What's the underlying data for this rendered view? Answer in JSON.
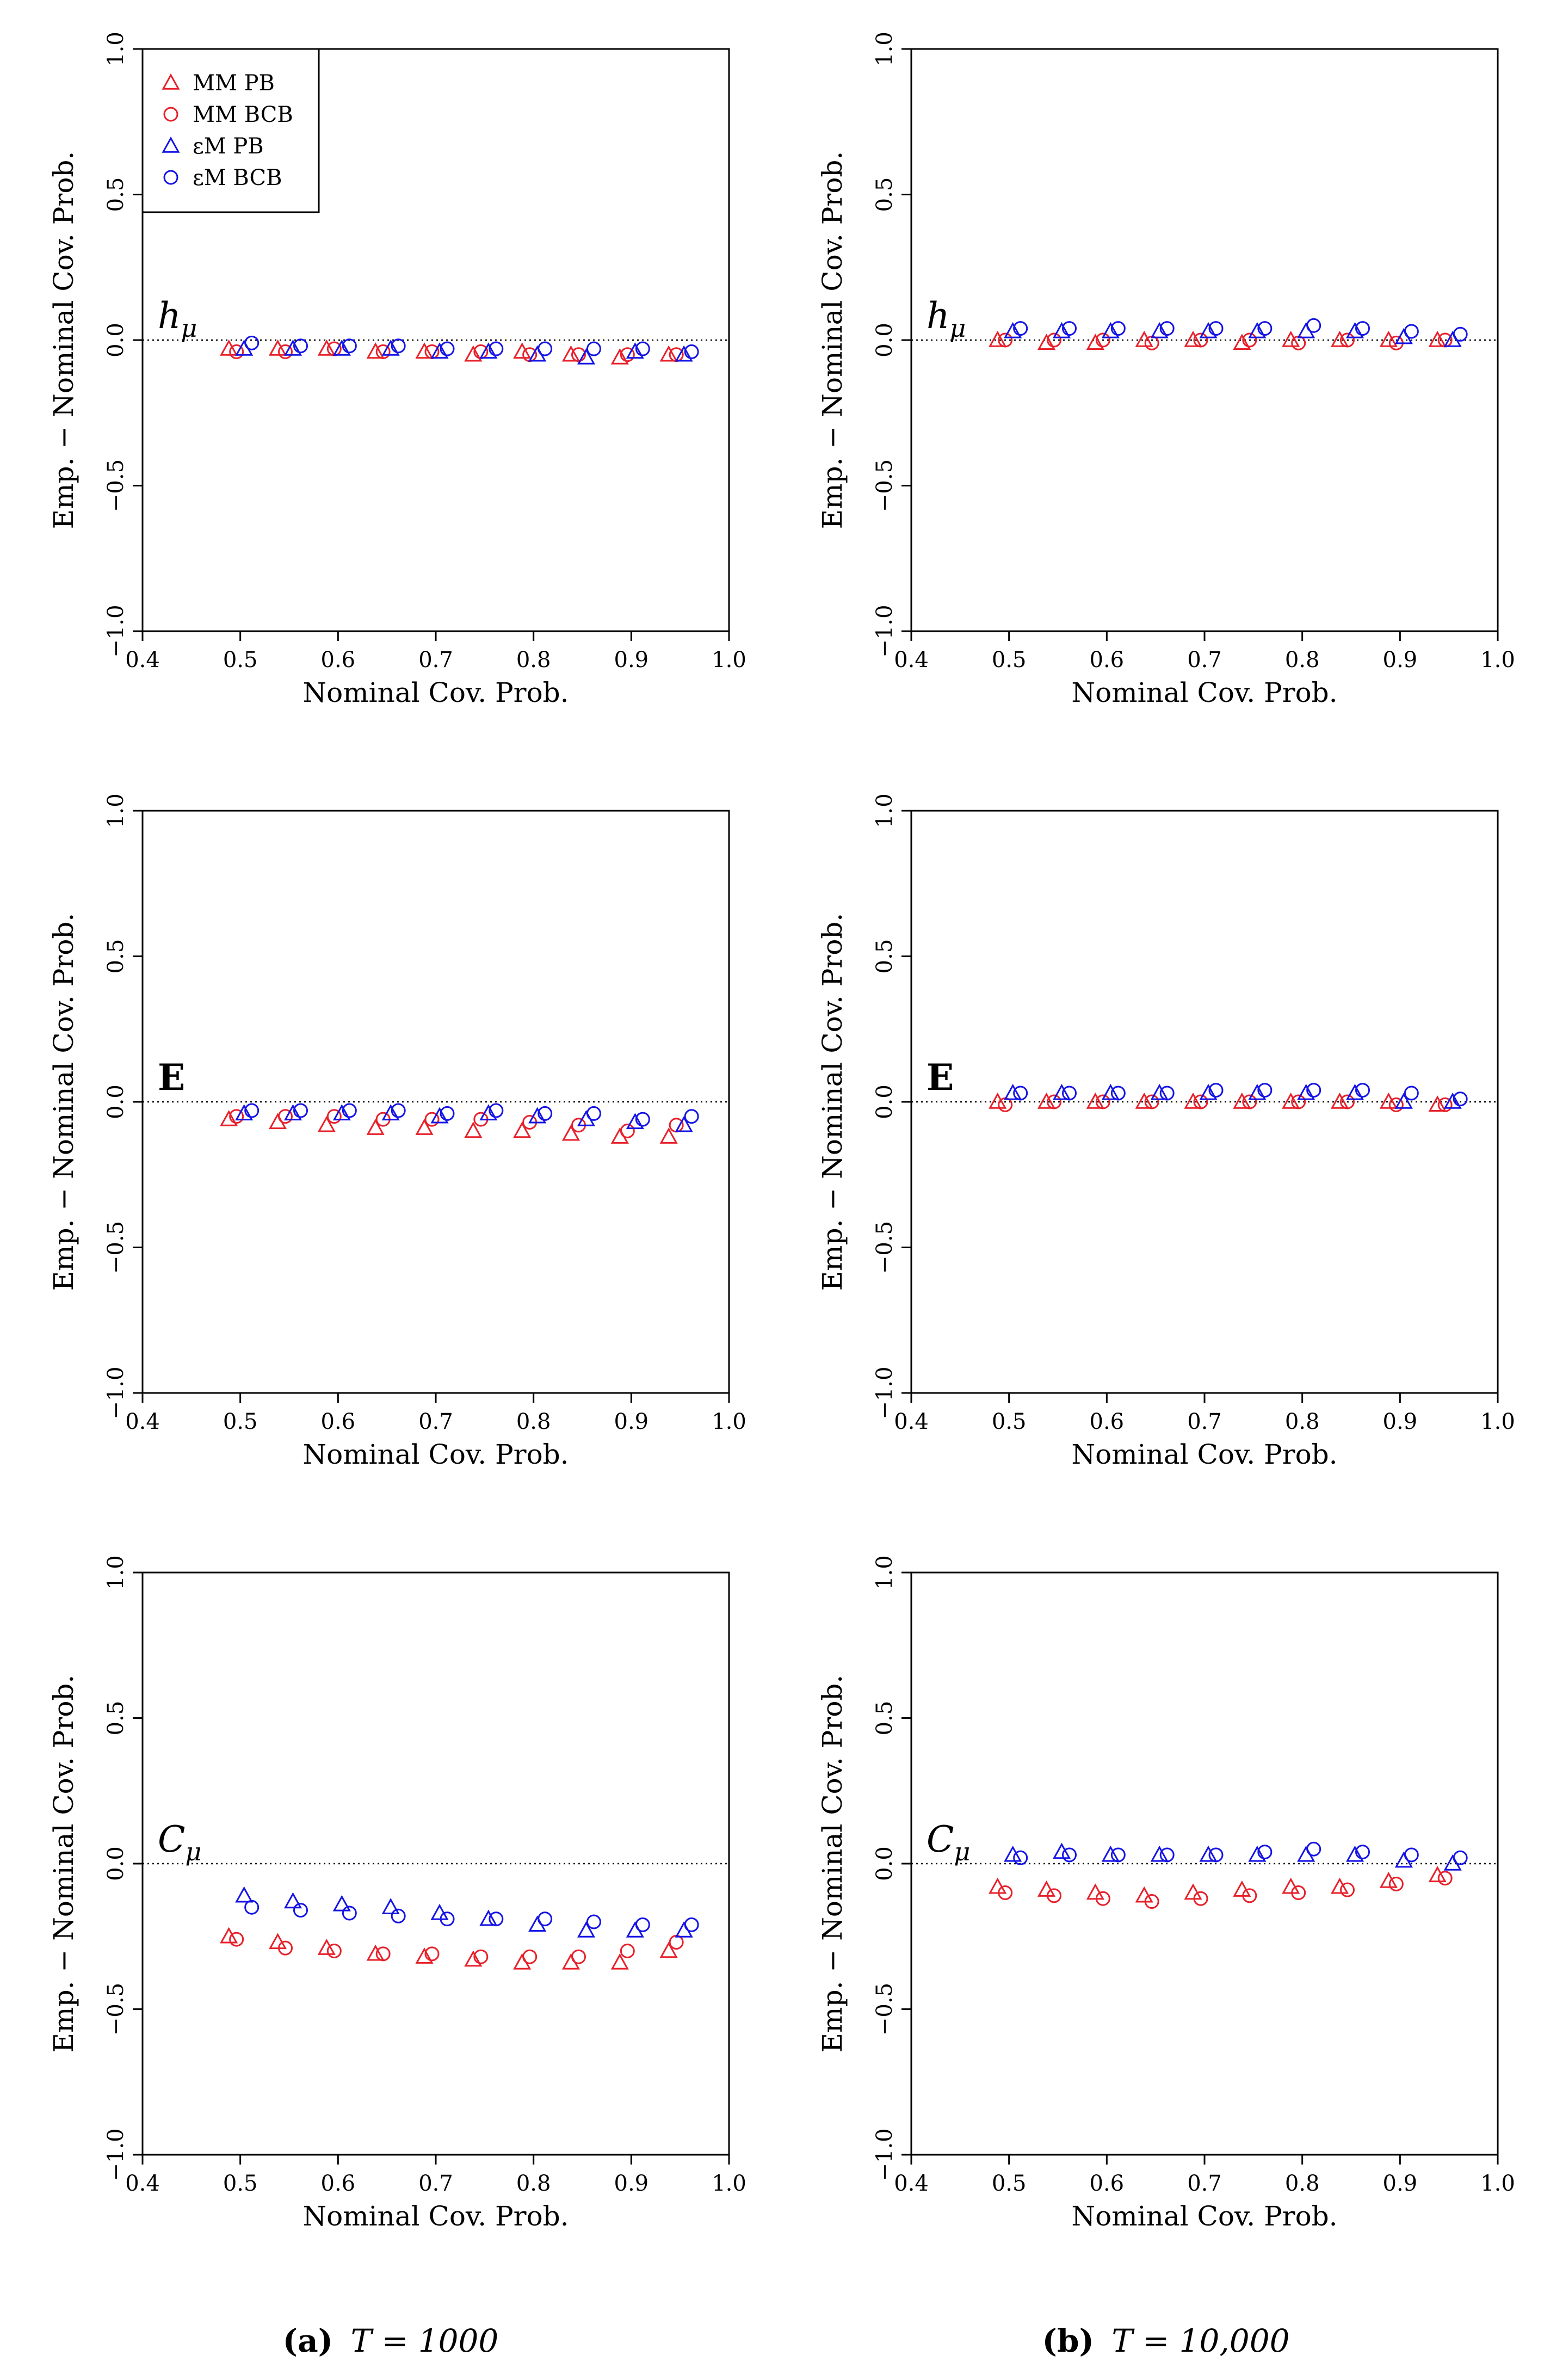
{
  "colors": {
    "mm": "#e8202a",
    "em": "#1414e6",
    "axis": "#000000"
  },
  "legend": [
    {
      "label": "MM PB",
      "marker": "triangle",
      "color": "#e8202a"
    },
    {
      "label": "MM BCB",
      "marker": "circle",
      "color": "#e8202a"
    },
    {
      "label": "εM PB",
      "marker": "triangle",
      "color": "#1414e6"
    },
    {
      "label": "εM BCB",
      "marker": "circle",
      "color": "#1414e6"
    }
  ],
  "captions": [
    {
      "letter": "(a)",
      "text": "T = 1000"
    },
    {
      "letter": "(b)",
      "text": "T = 10,000"
    }
  ],
  "chart_data": [
    {
      "type": "scatter",
      "panel": "a-top",
      "label": "hμ",
      "label_style": "italic",
      "xlabel": "Nominal Cov. Prob.",
      "ylabel": "Emp. − Nominal Cov. Prob.",
      "xlim": [
        0.4,
        1.0
      ],
      "ylim": [
        -1.0,
        1.0
      ],
      "xticks": [
        "0.4",
        "0.5",
        "0.6",
        "0.7",
        "0.8",
        "0.9",
        "1.0"
      ],
      "yticks": [
        "−1.0",
        "−0.5",
        "0.0",
        "0.5",
        "1.0"
      ],
      "reference_line": 0.0,
      "x": [
        0.5,
        0.55,
        0.6,
        0.65,
        0.7,
        0.75,
        0.8,
        0.85,
        0.9,
        0.95
      ],
      "series": [
        {
          "name": "MM PB",
          "values": [
            -0.03,
            -0.03,
            -0.03,
            -0.04,
            -0.04,
            -0.05,
            -0.04,
            -0.05,
            -0.06,
            -0.05
          ]
        },
        {
          "name": "MM BCB",
          "values": [
            -0.04,
            -0.04,
            -0.03,
            -0.04,
            -0.04,
            -0.04,
            -0.05,
            -0.05,
            -0.05,
            -0.05
          ]
        },
        {
          "name": "εM PB",
          "values": [
            -0.03,
            -0.03,
            -0.03,
            -0.03,
            -0.04,
            -0.04,
            -0.05,
            -0.06,
            -0.04,
            -0.05
          ]
        },
        {
          "name": "εM BCB",
          "values": [
            -0.01,
            -0.02,
            -0.02,
            -0.02,
            -0.03,
            -0.03,
            -0.03,
            -0.03,
            -0.03,
            -0.04
          ]
        }
      ]
    },
    {
      "type": "scatter",
      "panel": "b-top",
      "label": "hμ",
      "label_style": "italic",
      "xlabel": "Nominal Cov. Prob.",
      "ylabel": "Emp. − Nominal Cov. Prob.",
      "xlim": [
        0.4,
        1.0
      ],
      "ylim": [
        -1.0,
        1.0
      ],
      "xticks": [
        "0.4",
        "0.5",
        "0.6",
        "0.7",
        "0.8",
        "0.9",
        "1.0"
      ],
      "yticks": [
        "−1.0",
        "−0.5",
        "0.0",
        "0.5",
        "1.0"
      ],
      "reference_line": 0.0,
      "x": [
        0.5,
        0.55,
        0.6,
        0.65,
        0.7,
        0.75,
        0.8,
        0.85,
        0.9,
        0.95
      ],
      "series": [
        {
          "name": "MM PB",
          "values": [
            0.0,
            -0.01,
            -0.01,
            0.0,
            0.0,
            -0.01,
            0.0,
            0.0,
            0.0,
            0.0
          ]
        },
        {
          "name": "MM BCB",
          "values": [
            0.0,
            0.0,
            0.0,
            -0.01,
            0.0,
            0.0,
            -0.01,
            0.0,
            -0.01,
            0.0
          ]
        },
        {
          "name": "εM PB",
          "values": [
            0.03,
            0.03,
            0.03,
            0.03,
            0.03,
            0.03,
            0.03,
            0.03,
            0.01,
            0.0
          ]
        },
        {
          "name": "εM BCB",
          "values": [
            0.04,
            0.04,
            0.04,
            0.04,
            0.04,
            0.04,
            0.05,
            0.04,
            0.03,
            0.02
          ]
        }
      ]
    },
    {
      "type": "scatter",
      "panel": "a-middle",
      "label": "E",
      "label_style": "bold",
      "xlabel": "Nominal Cov. Prob.",
      "ylabel": "Emp. − Nominal Cov. Prob.",
      "xlim": [
        0.4,
        1.0
      ],
      "ylim": [
        -1.0,
        1.0
      ],
      "xticks": [
        "0.4",
        "0.5",
        "0.6",
        "0.7",
        "0.8",
        "0.9",
        "1.0"
      ],
      "yticks": [
        "−1.0",
        "−0.5",
        "0.0",
        "0.5",
        "1.0"
      ],
      "reference_line": 0.0,
      "x": [
        0.5,
        0.55,
        0.6,
        0.65,
        0.7,
        0.75,
        0.8,
        0.85,
        0.9,
        0.95
      ],
      "series": [
        {
          "name": "MM PB",
          "values": [
            -0.06,
            -0.07,
            -0.08,
            -0.09,
            -0.09,
            -0.1,
            -0.1,
            -0.11,
            -0.12,
            -0.12
          ]
        },
        {
          "name": "MM BCB",
          "values": [
            -0.05,
            -0.05,
            -0.05,
            -0.06,
            -0.06,
            -0.06,
            -0.07,
            -0.08,
            -0.1,
            -0.08
          ]
        },
        {
          "name": "εM PB",
          "values": [
            -0.04,
            -0.04,
            -0.04,
            -0.04,
            -0.05,
            -0.04,
            -0.05,
            -0.06,
            -0.07,
            -0.08
          ]
        },
        {
          "name": "εM BCB",
          "values": [
            -0.03,
            -0.03,
            -0.03,
            -0.03,
            -0.04,
            -0.03,
            -0.04,
            -0.04,
            -0.06,
            -0.05
          ]
        }
      ]
    },
    {
      "type": "scatter",
      "panel": "b-middle",
      "label": "E",
      "label_style": "bold",
      "xlabel": "Nominal Cov. Prob.",
      "ylabel": "Emp. − Nominal Cov. Prob.",
      "xlim": [
        0.4,
        1.0
      ],
      "ylim": [
        -1.0,
        1.0
      ],
      "xticks": [
        "0.4",
        "0.5",
        "0.6",
        "0.7",
        "0.8",
        "0.9",
        "1.0"
      ],
      "yticks": [
        "−1.0",
        "−0.5",
        "0.0",
        "0.5",
        "1.0"
      ],
      "reference_line": 0.0,
      "x": [
        0.5,
        0.55,
        0.6,
        0.65,
        0.7,
        0.75,
        0.8,
        0.85,
        0.9,
        0.95
      ],
      "series": [
        {
          "name": "MM PB",
          "values": [
            0.0,
            0.0,
            0.0,
            0.0,
            0.0,
            0.0,
            0.0,
            0.0,
            0.0,
            -0.01
          ]
        },
        {
          "name": "MM BCB",
          "values": [
            -0.01,
            0.0,
            0.0,
            0.0,
            0.0,
            0.0,
            0.0,
            0.0,
            -0.01,
            -0.01
          ]
        },
        {
          "name": "εM PB",
          "values": [
            0.03,
            0.03,
            0.03,
            0.03,
            0.03,
            0.03,
            0.03,
            0.03,
            0.0,
            0.0
          ]
        },
        {
          "name": "εM BCB",
          "values": [
            0.03,
            0.03,
            0.03,
            0.03,
            0.04,
            0.04,
            0.04,
            0.04,
            0.03,
            0.01
          ]
        }
      ]
    },
    {
      "type": "scatter",
      "panel": "a-bottom",
      "label": "Cμ",
      "label_style": "italic",
      "xlabel": "Nominal Cov. Prob.",
      "ylabel": "Emp. − Nominal Cov. Prob.",
      "xlim": [
        0.4,
        1.0
      ],
      "ylim": [
        -1.0,
        1.0
      ],
      "xticks": [
        "0.4",
        "0.5",
        "0.6",
        "0.7",
        "0.8",
        "0.9",
        "1.0"
      ],
      "yticks": [
        "−1.0",
        "−0.5",
        "0.0",
        "0.5",
        "1.0"
      ],
      "reference_line": 0.0,
      "x": [
        0.5,
        0.55,
        0.6,
        0.65,
        0.7,
        0.75,
        0.8,
        0.85,
        0.9,
        0.95
      ],
      "series": [
        {
          "name": "MM PB",
          "values": [
            -0.25,
            -0.27,
            -0.29,
            -0.31,
            -0.32,
            -0.33,
            -0.34,
            -0.34,
            -0.34,
            -0.3
          ]
        },
        {
          "name": "MM BCB",
          "values": [
            -0.26,
            -0.29,
            -0.3,
            -0.31,
            -0.31,
            -0.32,
            -0.32,
            -0.32,
            -0.3,
            -0.27
          ]
        },
        {
          "name": "εM PB",
          "values": [
            -0.11,
            -0.13,
            -0.14,
            -0.15,
            -0.17,
            -0.19,
            -0.21,
            -0.23,
            -0.23,
            -0.23
          ]
        },
        {
          "name": "εM BCB",
          "values": [
            -0.15,
            -0.16,
            -0.17,
            -0.18,
            -0.19,
            -0.19,
            -0.19,
            -0.2,
            -0.21,
            -0.21
          ]
        }
      ]
    },
    {
      "type": "scatter",
      "panel": "b-bottom",
      "label": "Cμ",
      "label_style": "italic",
      "xlabel": "Nominal Cov. Prob.",
      "ylabel": "Emp. − Nominal Cov. Prob.",
      "xlim": [
        0.4,
        1.0
      ],
      "ylim": [
        -1.0,
        1.0
      ],
      "xticks": [
        "0.4",
        "0.5",
        "0.6",
        "0.7",
        "0.8",
        "0.9",
        "1.0"
      ],
      "yticks": [
        "−1.0",
        "−0.5",
        "0.0",
        "0.5",
        "1.0"
      ],
      "reference_line": 0.0,
      "x": [
        0.5,
        0.55,
        0.6,
        0.65,
        0.7,
        0.75,
        0.8,
        0.85,
        0.9,
        0.95
      ],
      "series": [
        {
          "name": "MM PB",
          "values": [
            -0.08,
            -0.09,
            -0.1,
            -0.11,
            -0.1,
            -0.09,
            -0.08,
            -0.08,
            -0.06,
            -0.04
          ]
        },
        {
          "name": "MM BCB",
          "values": [
            -0.1,
            -0.11,
            -0.12,
            -0.13,
            -0.12,
            -0.11,
            -0.1,
            -0.09,
            -0.07,
            -0.05
          ]
        },
        {
          "name": "εM PB",
          "values": [
            0.03,
            0.04,
            0.03,
            0.03,
            0.03,
            0.03,
            0.03,
            0.03,
            0.01,
            0.0
          ]
        },
        {
          "name": "εM BCB",
          "values": [
            0.02,
            0.03,
            0.03,
            0.03,
            0.03,
            0.04,
            0.05,
            0.04,
            0.03,
            0.02
          ]
        }
      ]
    }
  ]
}
